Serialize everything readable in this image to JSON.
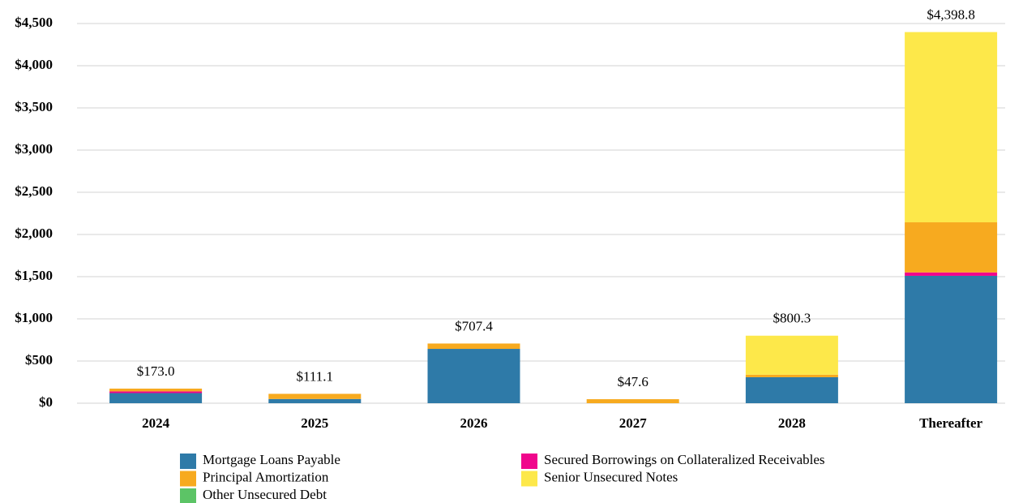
{
  "chart_data": {
    "type": "stacked_bar",
    "categories": [
      "2024",
      "2025",
      "2026",
      "2027",
      "2028",
      "Thereafter"
    ],
    "series": [
      {
        "name": "Mortgage Loans Payable",
        "color": "#2e7aa8",
        "values": [
          120,
          50,
          644,
          0,
          308,
          1510
        ]
      },
      {
        "name": "Secured Borrowings on Collateralized Receivables",
        "color": "#f0068c",
        "values": [
          20,
          0,
          0,
          0,
          0,
          40
        ]
      },
      {
        "name": "Principal Amortization",
        "color": "#f7aa1f",
        "values": [
          33,
          61.1,
          63.4,
          47.6,
          30,
          594
        ]
      },
      {
        "name": "Senior Unsecured Notes",
        "color": "#fde84a",
        "values": [
          0,
          0,
          0,
          0,
          462.3,
          2254.8
        ]
      },
      {
        "name": "Other Unsecured Debt",
        "color": "#5cc466",
        "values": [
          0,
          0,
          0,
          0,
          0,
          0
        ]
      }
    ],
    "totals": {
      "values": [
        173.0,
        111.1,
        707.4,
        47.6,
        800.3,
        4398.8
      ],
      "value_labels": [
        "$173.0",
        "$111.1",
        "$707.4",
        "$47.6",
        "$800.3",
        "$4,398.8"
      ]
    },
    "ylim": [
      0,
      4500
    ],
    "yticks": [
      {
        "value": 0,
        "label": "$0"
      },
      {
        "value": 500,
        "label": "$500"
      },
      {
        "value": 1000,
        "label": "$1,000"
      },
      {
        "value": 1500,
        "label": "$1,500"
      },
      {
        "value": 2000,
        "label": "$2,000"
      },
      {
        "value": 2500,
        "label": "$2,500"
      },
      {
        "value": 3000,
        "label": "$3,000"
      },
      {
        "value": 3500,
        "label": "$3,500"
      },
      {
        "value": 4000,
        "label": "$4,000"
      },
      {
        "value": 4500,
        "label": "$4,500"
      }
    ],
    "grid": true
  }
}
